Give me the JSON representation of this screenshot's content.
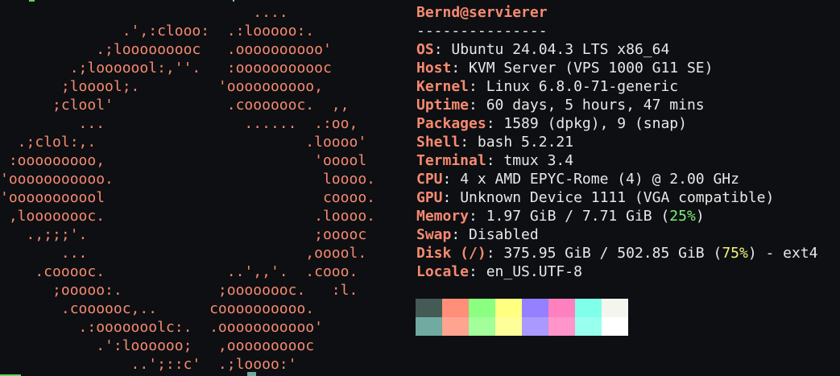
{
  "logo_lines": [
    "                             ....",
    "              .',:clooo:  .:looooo:.",
    "           .;looooooooc   .oooooooooo'",
    "        .;looooool:,''.   :ooooooooooc",
    "       ;looool;.         'oooooooooo,",
    "      ;clool'             .cooooooc.  ,,",
    "         ...                ......  .:oo,",
    "  .;clol:,.                        .loooo'",
    " :ooooooooo,                        'ooool",
    "'ooooooooooo.                        loooo.",
    "'ooooooooool                         coooo.",
    " ,loooooooc.                        .loooo.",
    "   .,;;;'.                          ;ooooc",
    "       ...                         ,ooool.",
    "    .cooooc.              ..',,'.  .cooo.",
    "      ;ooooo:.           ;oooooooc.   :l.",
    "       .coooooc,..      coooooooooo.",
    "         .:ooooooolc:.  .ooooooooooo'",
    "           .':loooooo;   ,oooooooooc",
    "               ..';::c'  .;loooo:'"
  ],
  "user": "Bernd",
  "at": "@",
  "host": "servierer",
  "separator": "---------------",
  "info": [
    {
      "label": "OS",
      "value": " Ubuntu 24.04.3 LTS x86_64"
    },
    {
      "label": "Host",
      "value": " KVM Server (VPS 1000 G11 SE)"
    },
    {
      "label": "Kernel",
      "value": " Linux 6.8.0-71-generic"
    },
    {
      "label": "Uptime",
      "value": " 60 days, 5 hours, 47 mins"
    },
    {
      "label": "Packages",
      "value": " 1589 (dpkg), 9 (snap)"
    },
    {
      "label": "Shell",
      "value": " bash 5.2.21"
    },
    {
      "label": "Terminal",
      "value": " tmux 3.4"
    },
    {
      "label": "CPU",
      "value": " 4 x AMD EPYC-Rome (4) @ 2.00 GHz"
    },
    {
      "label": "GPU",
      "value": " Unknown Device 1111 (VGA compatible)"
    }
  ],
  "memory": {
    "label": "Memory",
    "value": " 1.97 GiB / 7.71 GiB (",
    "percent": "25%",
    "suffix": ")"
  },
  "swap": {
    "label": "Swap",
    "value": " Disabled"
  },
  "disk": {
    "label": "Disk (/)",
    "value": " 375.95 GiB / 502.85 GiB (",
    "percent": "75%",
    "suffix": ") - ext4"
  },
  "locale": {
    "label": "Locale",
    "value": " en_US.UTF-8"
  },
  "colon": ":",
  "palette": {
    "normal": [
      "#445a55",
      "#ff8f78",
      "#8aff80",
      "#ffff80",
      "#9580ff",
      "#ff80bf",
      "#80ffea",
      "#f5f5f0"
    ],
    "bright": [
      "#70aaa0",
      "#ffa491",
      "#a2ff99",
      "#ffff99",
      "#aa99ff",
      "#ff95ca",
      "#99ffee",
      "#ffffff"
    ]
  }
}
